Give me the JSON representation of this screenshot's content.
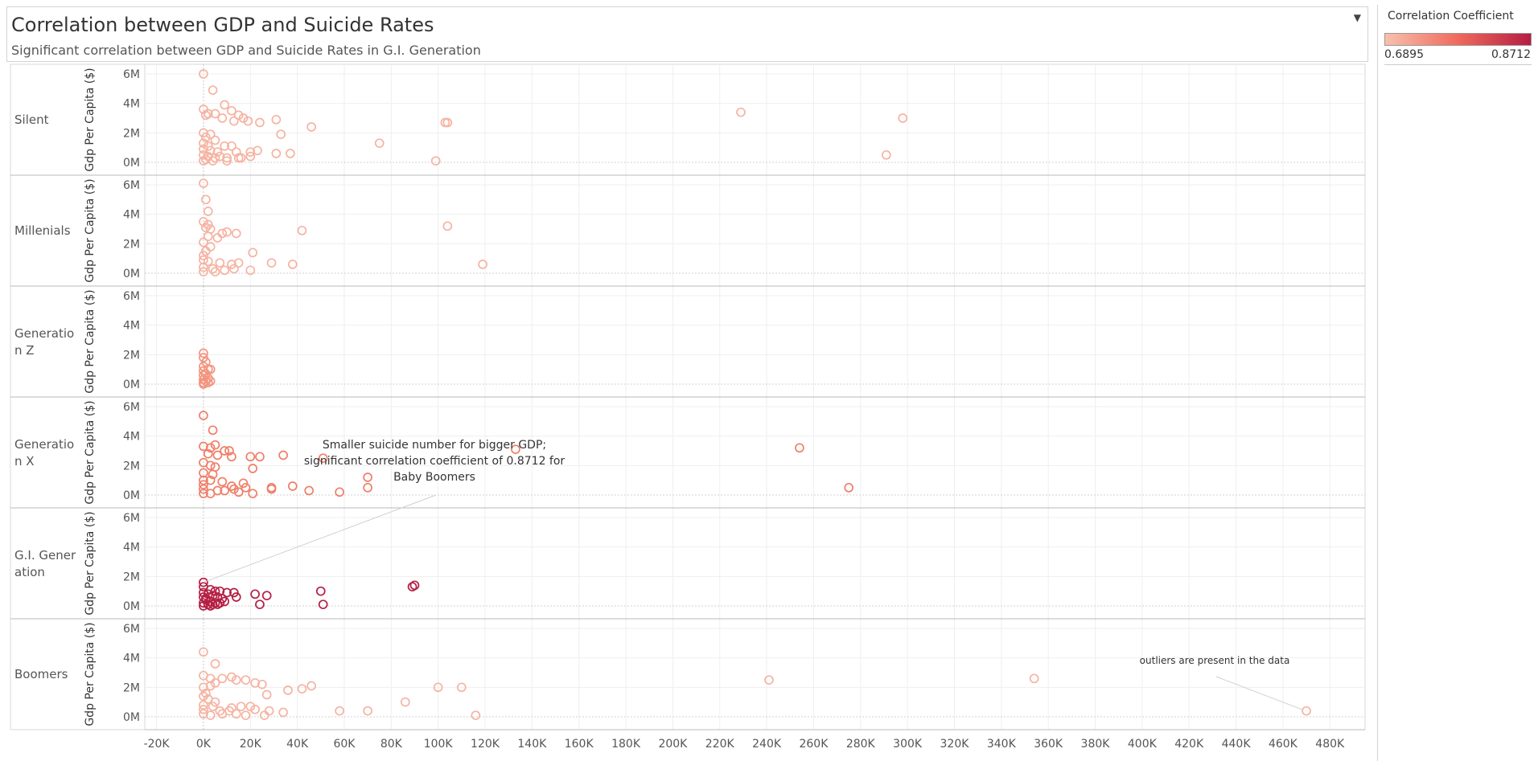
{
  "header": {
    "title": "Correlation between GDP and Suicide Rates",
    "subtitle": "Significant correlation between GDP and Suicide Rates in G.I. Generation",
    "dropdown_icon": "chevron-down-icon"
  },
  "legend": {
    "title": "Correlation Coefficient",
    "min_label": "0.6895",
    "max_label": "0.8712",
    "colors": [
      "#f9c0ad",
      "#ef6a5c",
      "#b51e43"
    ]
  },
  "annotations": {
    "boomers_note": [
      "Smaller suicide number for bigger GDP;",
      "significant correlation coefficient of 0.8712 for",
      "Baby Boomers"
    ],
    "outliers_note": "outliers are present in the data"
  },
  "chart_data": {
    "type": "scatter",
    "ylabel": "Gdp Per Capita ($)",
    "xlim": [
      -25000,
      495000
    ],
    "ylim": [
      -500000,
      6500000
    ],
    "x_ticks": [
      "-20K",
      "0K",
      "20K",
      "40K",
      "60K",
      "80K",
      "100K",
      "120K",
      "140K",
      "160K",
      "180K",
      "200K",
      "220K",
      "240K",
      "260K",
      "280K",
      "300K",
      "320K",
      "340K",
      "360K",
      "380K",
      "400K",
      "420K",
      "440K",
      "460K",
      "480K"
    ],
    "x_tick_values": [
      -20000,
      0,
      20000,
      40000,
      60000,
      80000,
      100000,
      120000,
      140000,
      160000,
      180000,
      200000,
      220000,
      240000,
      260000,
      280000,
      300000,
      320000,
      340000,
      360000,
      380000,
      400000,
      420000,
      440000,
      460000,
      480000
    ],
    "y_ticks": [
      "0M",
      "2M",
      "4M",
      "6M"
    ],
    "y_tick_values": [
      0,
      2000000,
      4000000,
      6000000
    ],
    "grid": true,
    "legend_position": "top-right",
    "panels": [
      {
        "name": "Silent",
        "label_lines": [
          "Silent"
        ],
        "color": "#f6b3a2",
        "points": [
          [
            0,
            6000000
          ],
          [
            4000,
            4900000
          ],
          [
            0,
            3600000
          ],
          [
            2000,
            3300000
          ],
          [
            1000,
            3200000
          ],
          [
            5000,
            3300000
          ],
          [
            9000,
            3900000
          ],
          [
            12000,
            3500000
          ],
          [
            15000,
            3200000
          ],
          [
            17000,
            3000000
          ],
          [
            8000,
            3000000
          ],
          [
            13000,
            2800000
          ],
          [
            19000,
            2800000
          ],
          [
            24000,
            2700000
          ],
          [
            31000,
            2900000
          ],
          [
            46000,
            2400000
          ],
          [
            33000,
            1900000
          ],
          [
            0,
            2000000
          ],
          [
            3000,
            1900000
          ],
          [
            1000,
            1700000
          ],
          [
            5000,
            1500000
          ],
          [
            0,
            1300000
          ],
          [
            2000,
            1100000
          ],
          [
            9000,
            1100000
          ],
          [
            12000,
            1100000
          ],
          [
            0,
            900000
          ],
          [
            3000,
            800000
          ],
          [
            6000,
            700000
          ],
          [
            14000,
            700000
          ],
          [
            20000,
            700000
          ],
          [
            23000,
            800000
          ],
          [
            31000,
            600000
          ],
          [
            37000,
            600000
          ],
          [
            0,
            500000
          ],
          [
            2000,
            400000
          ],
          [
            5000,
            300000
          ],
          [
            10000,
            300000
          ],
          [
            15000,
            300000
          ],
          [
            20000,
            400000
          ],
          [
            0,
            100000
          ],
          [
            4000,
            100000
          ],
          [
            10000,
            100000
          ],
          [
            16000,
            300000
          ],
          [
            75000,
            1300000
          ],
          [
            99000,
            100000
          ],
          [
            103000,
            2700000
          ],
          [
            104000,
            2700000
          ],
          [
            229000,
            3400000
          ],
          [
            298000,
            3000000
          ],
          [
            291000,
            500000
          ],
          [
            1000,
            200000
          ],
          [
            7000,
            400000
          ]
        ]
      },
      {
        "name": "Millenials",
        "label_lines": [
          "Millenials"
        ],
        "color": "#f6b3a2",
        "points": [
          [
            0,
            6100000
          ],
          [
            1000,
            5000000
          ],
          [
            2000,
            4200000
          ],
          [
            0,
            3500000
          ],
          [
            2000,
            3300000
          ],
          [
            1000,
            3100000
          ],
          [
            3000,
            3000000
          ],
          [
            8000,
            2700000
          ],
          [
            10000,
            2800000
          ],
          [
            14000,
            2700000
          ],
          [
            42000,
            2900000
          ],
          [
            104000,
            3200000
          ],
          [
            0,
            2100000
          ],
          [
            3000,
            1800000
          ],
          [
            1000,
            1500000
          ],
          [
            0,
            1200000
          ],
          [
            21000,
            1400000
          ],
          [
            0,
            900000
          ],
          [
            2000,
            800000
          ],
          [
            7000,
            700000
          ],
          [
            12000,
            600000
          ],
          [
            15000,
            700000
          ],
          [
            29000,
            700000
          ],
          [
            38000,
            600000
          ],
          [
            0,
            400000
          ],
          [
            4000,
            300000
          ],
          [
            9000,
            200000
          ],
          [
            13000,
            300000
          ],
          [
            20000,
            200000
          ],
          [
            119000,
            600000
          ],
          [
            0,
            100000
          ],
          [
            5000,
            100000
          ],
          [
            2000,
            2500000
          ],
          [
            6000,
            2400000
          ]
        ]
      },
      {
        "name": "Generation Z",
        "label_lines": [
          "Generatio",
          "n Z"
        ],
        "color": "#f3957f",
        "points": [
          [
            0,
            2100000
          ],
          [
            0,
            1800000
          ],
          [
            1000,
            1500000
          ],
          [
            0,
            1200000
          ],
          [
            2000,
            1000000
          ],
          [
            0,
            900000
          ],
          [
            1000,
            700000
          ],
          [
            0,
            600000
          ],
          [
            2000,
            400000
          ],
          [
            0,
            300000
          ],
          [
            1000,
            200000
          ],
          [
            3000,
            200000
          ],
          [
            0,
            100000
          ],
          [
            2000,
            100000
          ],
          [
            0,
            0
          ],
          [
            3000,
            1000000
          ]
        ]
      },
      {
        "name": "Generation X",
        "label_lines": [
          "Generatio",
          "n X"
        ],
        "color": "#ef7f69",
        "points": [
          [
            0,
            5400000
          ],
          [
            4000,
            4400000
          ],
          [
            0,
            3300000
          ],
          [
            3000,
            3200000
          ],
          [
            5000,
            3400000
          ],
          [
            9000,
            3000000
          ],
          [
            11000,
            3000000
          ],
          [
            2000,
            2800000
          ],
          [
            6000,
            2700000
          ],
          [
            12000,
            2600000
          ],
          [
            20000,
            2600000
          ],
          [
            24000,
            2600000
          ],
          [
            34000,
            2700000
          ],
          [
            51000,
            2500000
          ],
          [
            133000,
            3100000
          ],
          [
            0,
            2200000
          ],
          [
            3000,
            2000000
          ],
          [
            5000,
            1900000
          ],
          [
            21000,
            1800000
          ],
          [
            0,
            1500000
          ],
          [
            4000,
            1400000
          ],
          [
            70000,
            1200000
          ],
          [
            0,
            1000000
          ],
          [
            3000,
            1000000
          ],
          [
            8000,
            900000
          ],
          [
            17000,
            800000
          ],
          [
            0,
            700000
          ],
          [
            12000,
            600000
          ],
          [
            18000,
            500000
          ],
          [
            29000,
            500000
          ],
          [
            38000,
            600000
          ],
          [
            70000,
            500000
          ],
          [
            0,
            400000
          ],
          [
            6000,
            300000
          ],
          [
            9000,
            300000
          ],
          [
            15000,
            200000
          ],
          [
            21000,
            100000
          ],
          [
            29000,
            400000
          ],
          [
            45000,
            300000
          ],
          [
            58000,
            200000
          ],
          [
            0,
            100000
          ],
          [
            3000,
            100000
          ],
          [
            254000,
            3200000
          ],
          [
            275000,
            500000
          ],
          [
            13000,
            400000
          ]
        ]
      },
      {
        "name": "G.I. Generation",
        "label_lines": [
          "G.I. Gener",
          "ation"
        ],
        "color": "#b51e43",
        "points": [
          [
            0,
            1600000
          ],
          [
            0,
            1300000
          ],
          [
            3000,
            1100000
          ],
          [
            5000,
            1000000
          ],
          [
            7000,
            1000000
          ],
          [
            10000,
            900000
          ],
          [
            13000,
            900000
          ],
          [
            22000,
            800000
          ],
          [
            27000,
            700000
          ],
          [
            50000,
            1000000
          ],
          [
            89000,
            1300000
          ],
          [
            90000,
            1400000
          ],
          [
            0,
            900000
          ],
          [
            2000,
            800000
          ],
          [
            4000,
            700000
          ],
          [
            6000,
            600000
          ],
          [
            8000,
            500000
          ],
          [
            0,
            600000
          ],
          [
            1000,
            400000
          ],
          [
            3000,
            300000
          ],
          [
            5000,
            200000
          ],
          [
            7000,
            200000
          ],
          [
            9000,
            300000
          ],
          [
            14000,
            600000
          ],
          [
            0,
            200000
          ],
          [
            2000,
            100000
          ],
          [
            4000,
            100000
          ],
          [
            6000,
            100000
          ],
          [
            24000,
            100000
          ],
          [
            51000,
            100000
          ],
          [
            0,
            0
          ],
          [
            3000,
            0
          ],
          [
            1000,
            500000
          ]
        ]
      },
      {
        "name": "Boomers",
        "label_lines": [
          "Boomers"
        ],
        "color": "#f6b3a2",
        "points": [
          [
            0,
            4400000
          ],
          [
            5000,
            3600000
          ],
          [
            0,
            2800000
          ],
          [
            3000,
            2600000
          ],
          [
            8000,
            2600000
          ],
          [
            12000,
            2700000
          ],
          [
            14000,
            2500000
          ],
          [
            18000,
            2500000
          ],
          [
            22000,
            2300000
          ],
          [
            25000,
            2200000
          ],
          [
            5000,
            2300000
          ],
          [
            0,
            2000000
          ],
          [
            3000,
            2100000
          ],
          [
            42000,
            1900000
          ],
          [
            36000,
            1800000
          ],
          [
            46000,
            2100000
          ],
          [
            100000,
            2000000
          ],
          [
            110000,
            2000000
          ],
          [
            27000,
            1500000
          ],
          [
            0,
            1400000
          ],
          [
            2000,
            1200000
          ],
          [
            5000,
            1000000
          ],
          [
            0,
            800000
          ],
          [
            4000,
            700000
          ],
          [
            12000,
            600000
          ],
          [
            16000,
            700000
          ],
          [
            20000,
            700000
          ],
          [
            0,
            500000
          ],
          [
            7000,
            400000
          ],
          [
            11000,
            400000
          ],
          [
            22000,
            500000
          ],
          [
            28000,
            400000
          ],
          [
            34000,
            300000
          ],
          [
            58000,
            400000
          ],
          [
            70000,
            400000
          ],
          [
            86000,
            1000000
          ],
          [
            0,
            200000
          ],
          [
            3000,
            100000
          ],
          [
            8000,
            200000
          ],
          [
            14000,
            200000
          ],
          [
            18000,
            100000
          ],
          [
            26000,
            100000
          ],
          [
            116000,
            100000
          ],
          [
            241000,
            2500000
          ],
          [
            354000,
            2600000
          ],
          [
            470000,
            400000
          ],
          [
            1000,
            1600000
          ]
        ]
      }
    ]
  }
}
